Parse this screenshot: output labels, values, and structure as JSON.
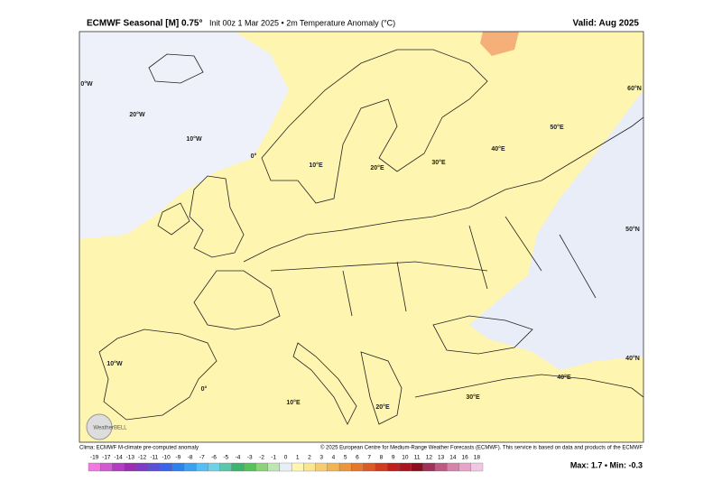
{
  "header": {
    "title": "ECMWF Seasonal [M] 0.75°",
    "subtitle": "Init 00z 1 Mar 2025 • 2m Temperature Anomaly (°C)",
    "valid": "Valid: Aug 2025"
  },
  "map": {
    "grid_labels": [
      "0°W",
      "20°W",
      "10°W",
      "0°",
      "10°E",
      "20°E",
      "30°E",
      "40°E",
      "50°E",
      "60°N",
      "50°N",
      "40°N",
      "10°W",
      "0°",
      "10°E",
      "20°E",
      "30°E",
      "40°E"
    ],
    "logo": "WeatherBELL"
  },
  "footer": {
    "clima": "Clima: ECMWF M-climate pre-computed anomaly",
    "copyright": "© 2025 European Centre for Medium-Range Weather Forecasts (ECMWF). This service is based on data and products of the ECMWF",
    "stats": "Max: 1.7 • Min: -0.3"
  },
  "colorbar": {
    "labels": [
      "-19",
      "-17",
      "-14",
      "-13",
      "-12",
      "-11",
      "-10",
      "-9",
      "-8",
      "-7",
      "-6",
      "-5",
      "-4",
      "-3",
      "-2",
      "-1",
      "0",
      "1",
      "2",
      "3",
      "4",
      "5",
      "6",
      "7",
      "8",
      "9",
      "10",
      "11",
      "12",
      "13",
      "14",
      "16",
      "18"
    ],
    "colors": [
      "#f07ae0",
      "#d25ad2",
      "#b43cc3",
      "#9b2db4",
      "#7d3cc8",
      "#5a50d7",
      "#3c64e6",
      "#2d82eb",
      "#3ca0f0",
      "#55bef5",
      "#6ed2e6",
      "#5ac8aa",
      "#3cb46e",
      "#55c35a",
      "#8cd278",
      "#bee6b4",
      "#e6eef8",
      "#fdf5b0",
      "#fae68c",
      "#f5cd6e",
      "#f0b450",
      "#eb963c",
      "#e6782d",
      "#dc5a23",
      "#d23c1e",
      "#c31e1e",
      "#aa141e",
      "#8c0f1e",
      "#a0325a",
      "#be5a82",
      "#d782aa",
      "#e6a5c8",
      "#f0c8e1"
    ]
  }
}
